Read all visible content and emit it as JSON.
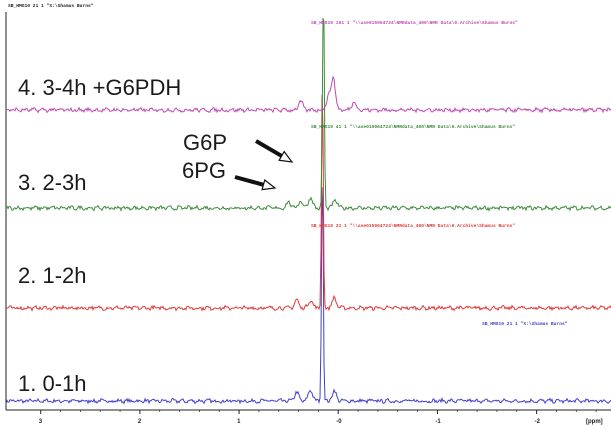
{
  "header_label": "SB_HMG10  21  1  \"X:\\Shamus Burns\"",
  "chart_data": {
    "type": "line",
    "xlabel": "[ppm]",
    "x_ticks": [
      "3",
      "2",
      "1",
      "-0",
      "-1",
      "-2"
    ],
    "x_tick_values": [
      3,
      2,
      1,
      0,
      -1,
      -2
    ],
    "xlim": [
      3.35,
      -2.75
    ],
    "x_reversed": true,
    "series": [
      {
        "name": "1.  0-1h",
        "color": "#3f3fd0",
        "tag": "SB_HMG10  21  1  \"X:\\Shamus Burns\"",
        "peaks": [
          {
            "ppm": 0.42,
            "h": 0.22
          },
          {
            "ppm": 0.28,
            "h": 0.28
          },
          {
            "ppm": 0.16,
            "h": 6.0
          },
          {
            "ppm": 0.04,
            "h": 0.25
          }
        ]
      },
      {
        "name": "2.  1-2h",
        "color": "#e03a3a",
        "tag": "SB_HMG10  31  1  \"\\\\ase015964724\\NMRdata_400\\NMR Data\\0.Archive\\Shamus Burns\"",
        "peaks": [
          {
            "ppm": 0.42,
            "h": 0.2
          },
          {
            "ppm": 0.28,
            "h": 0.2
          },
          {
            "ppm": 0.16,
            "h": 5.9
          },
          {
            "ppm": 0.04,
            "h": 0.25
          }
        ]
      },
      {
        "name": "3.  2-3h",
        "color": "#3e8a3e",
        "tag": "SB_HMG10  41  1  \"\\\\ase015964724\\NMRdata_400\\NMR Data\\0.Archive\\Shamus Burns\"",
        "peaks": [
          {
            "ppm": 0.5,
            "h": 0.15
          },
          {
            "ppm": 0.38,
            "h": 0.18
          },
          {
            "ppm": 0.28,
            "h": 0.26
          },
          {
            "ppm": 0.15,
            "h": 6.1
          },
          {
            "ppm": 0.03,
            "h": 0.2
          }
        ]
      },
      {
        "name": "4.  3-4h +G6PDH",
        "color": "#c04ab0",
        "tag": "SB_HMG10  101  1  \"\\\\ase015964724\\NMRdata_400\\NMR Data\\0.Archive\\Shamus Burns\"",
        "peaks": [
          {
            "ppm": 0.38,
            "h": 0.22
          },
          {
            "ppm": 0.1,
            "h": 0.32
          },
          {
            "ppm": 0.05,
            "h": 0.8
          },
          {
            "ppm": -0.16,
            "h": 0.22
          }
        ]
      }
    ],
    "annotations": [
      {
        "text": "G6P",
        "target_ppm": 0.19
      },
      {
        "text": "6PG",
        "target_ppm": 0.38
      }
    ]
  }
}
